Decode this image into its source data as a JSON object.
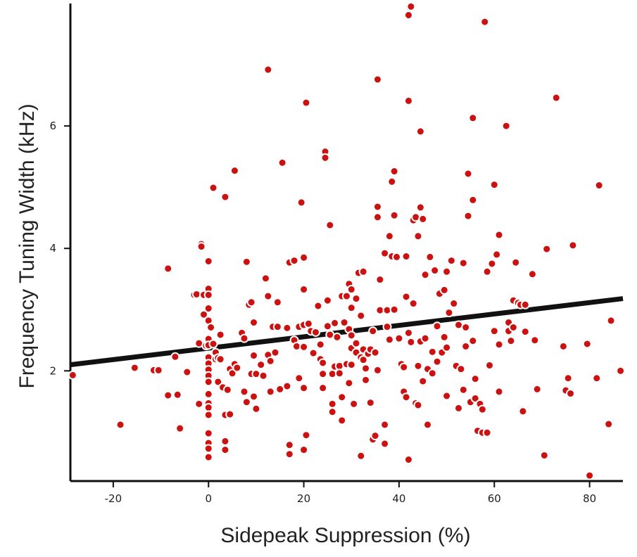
{
  "chart_data": {
    "type": "scatter",
    "title": "",
    "xlabel": "Sidepeak Suppression (%)",
    "ylabel": "Frequency Tuning Width (kHz)",
    "xlim": [
      -29,
      87
    ],
    "ylim": [
      0.2,
      8.0
    ],
    "x_ticks": [
      -20,
      0,
      20,
      40,
      60,
      80
    ],
    "y_ticks": [
      2,
      4,
      6
    ],
    "grid": false,
    "legend": "none",
    "colors": {
      "point_fill": "#cc1111",
      "point_stroke": "#ffffff",
      "line": "#111111",
      "axis": "#111111"
    },
    "regression_line": {
      "x": [
        -29,
        87
      ],
      "y": [
        2.1,
        3.18
      ]
    },
    "points": [
      [
        -28.5,
        1.93
      ],
      [
        -18.5,
        1.12
      ],
      [
        -15.5,
        2.05
      ],
      [
        -11.5,
        2.01
      ],
      [
        -10.5,
        2.01
      ],
      [
        -8.5,
        3.67
      ],
      [
        -8.5,
        1.6
      ],
      [
        -7.0,
        2.23
      ],
      [
        -6.5,
        1.61
      ],
      [
        -6.0,
        1.06
      ],
      [
        -4.5,
        1.98
      ],
      [
        -3.0,
        3.24
      ],
      [
        -2.5,
        3.25
      ],
      [
        -2.0,
        2.45
      ],
      [
        -2.0,
        1.46
      ],
      [
        -1.5,
        4.07
      ],
      [
        -1.5,
        4.03
      ],
      [
        -1.0,
        3.24
      ],
      [
        -1.0,
        2.92
      ],
      [
        -0.5,
        2.41
      ],
      [
        0.0,
        3.79
      ],
      [
        0.0,
        3.34
      ],
      [
        0.0,
        3.24
      ],
      [
        0.0,
        3.02
      ],
      [
        0.0,
        2.82
      ],
      [
        0.0,
        2.52
      ],
      [
        0.0,
        2.42
      ],
      [
        0.0,
        2.22
      ],
      [
        0.0,
        2.12
      ],
      [
        0.0,
        2.02
      ],
      [
        0.0,
        1.92
      ],
      [
        0.0,
        1.82
      ],
      [
        0.0,
        1.62
      ],
      [
        0.0,
        1.47
      ],
      [
        0.0,
        1.4
      ],
      [
        0.0,
        1.28
      ],
      [
        0.0,
        0.98
      ],
      [
        0.0,
        0.82
      ],
      [
        0.0,
        0.73
      ],
      [
        0.0,
        0.59
      ],
      [
        0.5,
        2.71
      ],
      [
        1.0,
        4.99
      ],
      [
        1.0,
        2.44
      ],
      [
        1.5,
        2.3
      ],
      [
        1.5,
        2.19
      ],
      [
        2.0,
        2.21
      ],
      [
        2.0,
        1.82
      ],
      [
        2.5,
        2.59
      ],
      [
        2.5,
        2.19
      ],
      [
        3.0,
        1.73
      ],
      [
        3.5,
        4.84
      ],
      [
        3.5,
        1.28
      ],
      [
        3.5,
        0.85
      ],
      [
        3.5,
        0.71
      ],
      [
        4.0,
        1.69
      ],
      [
        4.5,
        2.03
      ],
      [
        4.5,
        1.29
      ],
      [
        5.0,
        1.96
      ],
      [
        5.5,
        5.27
      ],
      [
        5.5,
        2.11
      ],
      [
        6.0,
        2.05
      ],
      [
        7.0,
        2.62
      ],
      [
        7.5,
        2.53
      ],
      [
        7.5,
        1.66
      ],
      [
        8.0,
        1.49
      ],
      [
        8.0,
        3.78
      ],
      [
        8.5,
        3.08
      ],
      [
        9.0,
        3.12
      ],
      [
        9.0,
        1.95
      ],
      [
        9.5,
        2.79
      ],
      [
        9.5,
        2.25
      ],
      [
        9.5,
        1.58
      ],
      [
        10.0,
        1.95
      ],
      [
        10.0,
        1.38
      ],
      [
        11.0,
        2.1
      ],
      [
        11.5,
        1.92
      ],
      [
        12.0,
        3.51
      ],
      [
        12.5,
        6.92
      ],
      [
        12.5,
        3.22
      ],
      [
        12.5,
        2.26
      ],
      [
        13.0,
        2.16
      ],
      [
        13.0,
        1.66
      ],
      [
        13.5,
        2.72
      ],
      [
        14.0,
        2.3
      ],
      [
        14.5,
        3.12
      ],
      [
        14.5,
        2.72
      ],
      [
        15.0,
        1.7
      ],
      [
        15.5,
        5.4
      ],
      [
        16.5,
        2.7
      ],
      [
        16.5,
        1.75
      ],
      [
        17.0,
        3.77
      ],
      [
        17.0,
        0.79
      ],
      [
        17.0,
        0.64
      ],
      [
        18.0,
        3.8
      ],
      [
        18.0,
        2.5
      ],
      [
        18.5,
        2.4
      ],
      [
        19.0,
        2.72
      ],
      [
        19.0,
        1.88
      ],
      [
        19.5,
        4.75
      ],
      [
        20.0,
        3.85
      ],
      [
        20.0,
        3.33
      ],
      [
        20.0,
        2.75
      ],
      [
        20.0,
        2.39
      ],
      [
        20.0,
        1.72
      ],
      [
        20.0,
        0.71
      ],
      [
        20.5,
        0.95
      ],
      [
        20.5,
        6.38
      ],
      [
        21.0,
        2.77
      ],
      [
        21.5,
        2.65
      ],
      [
        22.0,
        2.29
      ],
      [
        22.5,
        2.63
      ],
      [
        23.0,
        3.06
      ],
      [
        23.5,
        2.43
      ],
      [
        23.5,
        2.19
      ],
      [
        24.0,
        1.95
      ],
      [
        24.0,
        2.13
      ],
      [
        24.0,
        1.72
      ],
      [
        24.5,
        5.58
      ],
      [
        24.5,
        5.48
      ],
      [
        25.0,
        3.15
      ],
      [
        25.0,
        2.73
      ],
      [
        25.5,
        4.38
      ],
      [
        25.5,
        2.59
      ],
      [
        26.0,
        1.95
      ],
      [
        26.0,
        1.46
      ],
      [
        26.0,
        1.33
      ],
      [
        26.5,
        2.78
      ],
      [
        26.5,
        2.07
      ],
      [
        27.0,
        2.55
      ],
      [
        27.5,
        2.08
      ],
      [
        27.5,
        1.96
      ],
      [
        28.0,
        3.22
      ],
      [
        28.0,
        1.57
      ],
      [
        28.0,
        1.19
      ],
      [
        28.5,
        2.79
      ],
      [
        29.0,
        3.22
      ],
      [
        29.0,
        2.11
      ],
      [
        29.5,
        3.42
      ],
      [
        29.5,
        2.68
      ],
      [
        29.5,
        1.8
      ],
      [
        30.0,
        3.33
      ],
      [
        30.0,
        3.03
      ],
      [
        30.0,
        2.58
      ],
      [
        30.0,
        2.37
      ],
      [
        30.0,
        2.1
      ],
      [
        30.5,
        1.46
      ],
      [
        31.0,
        3.18
      ],
      [
        31.0,
        2.45
      ],
      [
        31.0,
        2.3
      ],
      [
        31.5,
        3.6
      ],
      [
        32.0,
        2.9
      ],
      [
        32.0,
        2.22
      ],
      [
        32.0,
        0.61
      ],
      [
        32.5,
        3.62
      ],
      [
        32.5,
        2.35
      ],
      [
        32.5,
        2.18
      ],
      [
        33.0,
        2.04
      ],
      [
        33.0,
        1.85
      ],
      [
        33.5,
        2.28
      ],
      [
        34.0,
        2.35
      ],
      [
        34.0,
        1.48
      ],
      [
        34.5,
        2.65
      ],
      [
        34.5,
        0.88
      ],
      [
        35.0,
        0.94
      ],
      [
        35.0,
        2.3
      ],
      [
        35.5,
        6.76
      ],
      [
        35.5,
        4.68
      ],
      [
        35.5,
        4.51
      ],
      [
        35.5,
        2.01
      ],
      [
        36.0,
        3.49
      ],
      [
        36.0,
        2.99
      ],
      [
        37.0,
        3.92
      ],
      [
        37.0,
        1.12
      ],
      [
        37.0,
        0.81
      ],
      [
        37.5,
        2.99
      ],
      [
        37.5,
        2.72
      ],
      [
        38.0,
        4.2
      ],
      [
        38.0,
        2.51
      ],
      [
        38.5,
        5.09
      ],
      [
        38.5,
        3.87
      ],
      [
        39.0,
        5.26
      ],
      [
        39.0,
        4.54
      ],
      [
        39.0,
        3.0
      ],
      [
        39.5,
        3.86
      ],
      [
        40.0,
        2.53
      ],
      [
        40.5,
        2.11
      ],
      [
        41.0,
        2.06
      ],
      [
        41.0,
        1.66
      ],
      [
        41.5,
        3.87
      ],
      [
        41.5,
        3.21
      ],
      [
        41.5,
        1.57
      ],
      [
        42.0,
        7.81
      ],
      [
        42.0,
        6.41
      ],
      [
        42.0,
        2.62
      ],
      [
        42.0,
        0.55
      ],
      [
        42.5,
        2.47
      ],
      [
        42.5,
        7.95
      ],
      [
        43.0,
        4.46
      ],
      [
        43.0,
        3.1
      ],
      [
        43.5,
        4.51
      ],
      [
        43.5,
        1.47
      ],
      [
        44.0,
        4.2
      ],
      [
        44.0,
        2.08
      ],
      [
        44.0,
        1.44
      ],
      [
        44.5,
        5.91
      ],
      [
        44.5,
        4.67
      ],
      [
        44.5,
        2.48
      ],
      [
        45.0,
        4.48
      ],
      [
        45.0,
        1.83
      ],
      [
        45.5,
        3.57
      ],
      [
        45.5,
        2.53
      ],
      [
        46.0,
        1.12
      ],
      [
        46.0,
        2.03
      ],
      [
        46.5,
        3.86
      ],
      [
        47.0,
        2.31
      ],
      [
        47.0,
        1.96
      ],
      [
        47.5,
        3.64
      ],
      [
        48.0,
        2.73
      ],
      [
        48.0,
        2.15
      ],
      [
        48.5,
        3.26
      ],
      [
        49.0,
        2.3
      ],
      [
        49.5,
        3.32
      ],
      [
        49.5,
        2.55
      ],
      [
        50.0,
        3.62
      ],
      [
        50.0,
        2.38
      ],
      [
        50.0,
        1.59
      ],
      [
        50.5,
        2.95
      ],
      [
        51.0,
        3.8
      ],
      [
        51.5,
        3.1
      ],
      [
        52.0,
        2.08
      ],
      [
        52.5,
        1.39
      ],
      [
        52.5,
        2.75
      ],
      [
        53.0,
        2.03
      ],
      [
        53.5,
        3.76
      ],
      [
        53.5,
        1.69
      ],
      [
        54.0,
        2.71
      ],
      [
        54.0,
        2.4
      ],
      [
        54.5,
        5.22
      ],
      [
        54.5,
        4.53
      ],
      [
        55.0,
        1.49
      ],
      [
        55.5,
        6.13
      ],
      [
        55.5,
        4.79
      ],
      [
        55.5,
        2.49
      ],
      [
        56.0,
        1.87
      ],
      [
        56.0,
        1.55
      ],
      [
        56.5,
        1.02
      ],
      [
        57.0,
        1.46
      ],
      [
        57.5,
        1.37
      ],
      [
        57.5,
        0.99
      ],
      [
        58.0,
        7.7
      ],
      [
        58.5,
        3.62
      ],
      [
        58.5,
        0.99
      ],
      [
        59.0,
        2.09
      ],
      [
        59.5,
        3.75
      ],
      [
        60.0,
        5.04
      ],
      [
        60.0,
        2.65
      ],
      [
        60.5,
        3.9
      ],
      [
        61.0,
        4.22
      ],
      [
        61.0,
        2.43
      ],
      [
        61.0,
        1.66
      ],
      [
        62.5,
        6.0
      ],
      [
        63.0,
        2.79
      ],
      [
        63.0,
        2.65
      ],
      [
        63.5,
        2.49
      ],
      [
        64.0,
        3.15
      ],
      [
        64.0,
        2.71
      ],
      [
        64.5,
        3.77
      ],
      [
        65.0,
        3.11
      ],
      [
        65.5,
        3.08
      ],
      [
        66.0,
        1.34
      ],
      [
        66.5,
        3.08
      ],
      [
        66.5,
        2.64
      ],
      [
        68.0,
        3.58
      ],
      [
        68.5,
        2.5
      ],
      [
        69.0,
        1.7
      ],
      [
        70.5,
        0.62
      ],
      [
        71.0,
        3.99
      ],
      [
        73.0,
        6.46
      ],
      [
        74.5,
        2.4
      ],
      [
        75.0,
        1.68
      ],
      [
        75.5,
        1.88
      ],
      [
        76.0,
        1.63
      ],
      [
        76.5,
        4.05
      ],
      [
        79.5,
        2.44
      ],
      [
        80.0,
        0.29
      ],
      [
        81.5,
        1.88
      ],
      [
        82.0,
        5.03
      ],
      [
        84.0,
        1.13
      ],
      [
        84.5,
        2.82
      ],
      [
        86.5,
        2.0
      ]
    ]
  }
}
